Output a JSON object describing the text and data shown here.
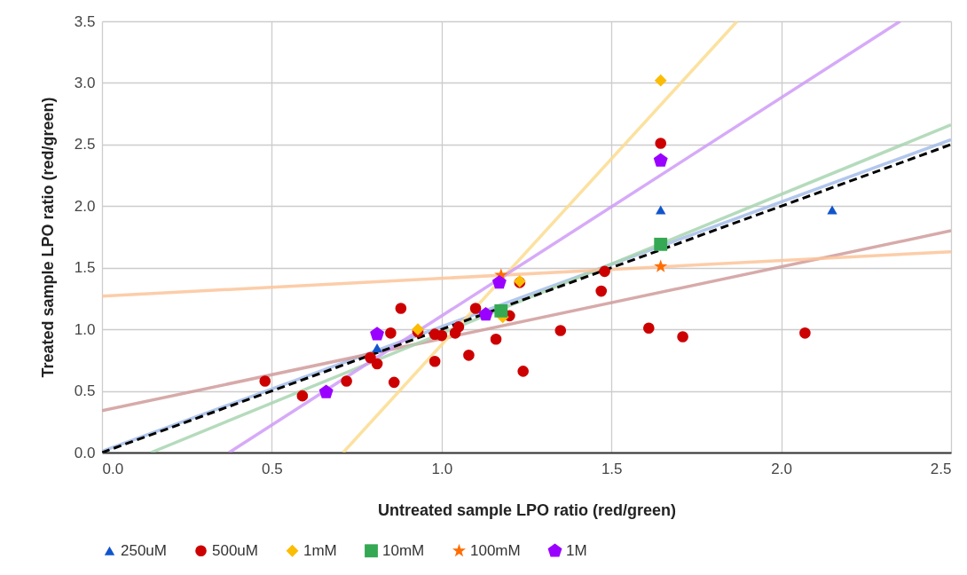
{
  "chart_data": {
    "type": "scatter",
    "xlabel": "Untreated sample LPO ratio (red/green)",
    "ylabel": "Treated sample LPO ratio (red/green)",
    "xlim": [
      0,
      2.5
    ],
    "ylim": [
      0,
      3.5
    ],
    "xticks": [
      {
        "value": 0,
        "label": "0.0"
      },
      {
        "value": 0.5,
        "label": "0.5"
      },
      {
        "value": 1,
        "label": "1.0"
      },
      {
        "value": 1.5,
        "label": "1.5"
      },
      {
        "value": 2,
        "label": "2.0"
      },
      {
        "value": 2.5,
        "label": "2.5"
      }
    ],
    "yticks": [
      {
        "value": 0,
        "label": "0.0"
      },
      {
        "value": 0.5,
        "label": "0.5"
      },
      {
        "value": 1,
        "label": "1.0"
      },
      {
        "value": 1.5,
        "label": "1.5"
      },
      {
        "value": 2,
        "label": "2.0"
      },
      {
        "value": 2.5,
        "label": "2.5"
      },
      {
        "value": 3,
        "label": "3.0"
      },
      {
        "value": 3.5,
        "label": "3.5"
      }
    ],
    "grid": true,
    "legend": "bottom",
    "series": [
      {
        "name": "250uM",
        "marker": "triangle",
        "color": "#1155cc",
        "x": [
          0.81,
          1.645,
          2.15
        ],
        "values": [
          0.85,
          1.97,
          1.97
        ]
      },
      {
        "name": "500uM",
        "marker": "circle",
        "color": "#cc0000",
        "x": [
          0.48,
          0.59,
          0.72,
          0.79,
          0.81,
          0.85,
          0.86,
          0.88,
          0.93,
          0.98,
          0.98,
          1.0,
          1.04,
          1.05,
          1.08,
          1.1,
          1.16,
          1.2,
          1.23,
          1.24,
          1.35,
          1.47,
          1.48,
          1.61,
          1.645,
          1.71,
          2.07
        ],
        "values": [
          0.58,
          0.46,
          0.58,
          0.77,
          0.72,
          0.97,
          0.57,
          1.17,
          0.98,
          0.74,
          0.96,
          0.95,
          0.97,
          1.02,
          0.79,
          1.17,
          0.92,
          1.11,
          1.38,
          0.66,
          0.99,
          1.31,
          1.47,
          1.01,
          2.51,
          0.94,
          0.97
        ]
      },
      {
        "name": "1mM",
        "marker": "diamond",
        "color": "#fbbc04",
        "x": [
          0.93,
          1.18,
          1.23,
          1.645
        ],
        "values": [
          1.0,
          1.1,
          1.39,
          3.02
        ]
      },
      {
        "name": "10mM",
        "marker": "square",
        "color": "#34a853",
        "x": [
          1.175,
          1.645
        ],
        "values": [
          1.15,
          1.69
        ]
      },
      {
        "name": "100mM",
        "marker": "star",
        "color": "#ff6d01",
        "x": [
          1.175,
          1.645
        ],
        "values": [
          1.44,
          1.51
        ]
      },
      {
        "name": "1M",
        "color": "#9900ff",
        "x": [
          0.66,
          0.81,
          1.13,
          1.17,
          1.645
        ],
        "values": [
          0.49,
          0.96,
          1.12,
          1.38,
          2.37
        ]
      },
      {
        "type": "line",
        "line_style": "solid",
        "color": "#a4bdea",
        "x": [
          0,
          2.5
        ],
        "values": [
          0.01,
          2.54
        ]
      },
      {
        "type": "line",
        "line_style": "solid",
        "color": "#d09b9b",
        "x": [
          0,
          2.5
        ],
        "values": [
          0.34,
          1.8
        ]
      },
      {
        "type": "line",
        "line_style": "solid",
        "color": "#fbdc8e",
        "x": [
          0.71,
          1.87
        ],
        "values": [
          0,
          3.5
        ]
      },
      {
        "type": "line",
        "line_style": "solid",
        "color": "#a8d5b0",
        "x": [
          0.144,
          2.5
        ],
        "values": [
          0,
          2.66
        ]
      },
      {
        "type": "line",
        "line_style": "solid",
        "color": "#fbc49a",
        "x": [
          0,
          2.5
        ],
        "values": [
          1.27,
          1.63
        ]
      },
      {
        "type": "line",
        "line_style": "solid",
        "color": "#cf9bf7",
        "x": [
          0.374,
          2.35
        ],
        "values": [
          0,
          3.5
        ]
      },
      {
        "type": "line",
        "line_style": "dashed",
        "color": "#000000",
        "x": [
          0,
          2.5
        ],
        "values": [
          0,
          2.5
        ]
      }
    ]
  }
}
